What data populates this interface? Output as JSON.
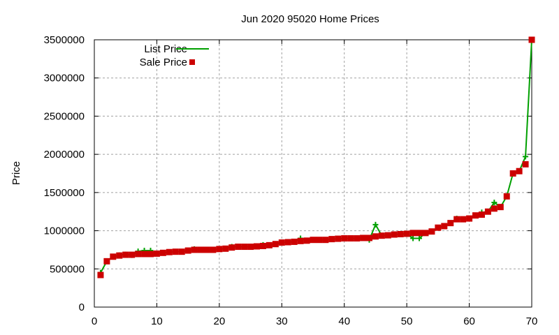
{
  "chart_data": {
    "type": "line",
    "title": "Jun 2020 95020 Home Prices",
    "xlabel": "",
    "ylabel": "Price",
    "xlim": [
      0,
      70
    ],
    "ylim": [
      0,
      3500000
    ],
    "xticks": [
      0,
      10,
      20,
      30,
      40,
      50,
      60,
      70
    ],
    "yticks": [
      0,
      500000,
      1000000,
      1500000,
      2000000,
      2500000,
      3000000,
      3500000
    ],
    "grid": true,
    "legend_position": "top-left",
    "x": [
      1,
      2,
      3,
      4,
      5,
      6,
      7,
      8,
      9,
      10,
      11,
      12,
      13,
      14,
      15,
      16,
      17,
      18,
      19,
      20,
      21,
      22,
      23,
      24,
      25,
      26,
      27,
      28,
      29,
      30,
      31,
      32,
      33,
      34,
      35,
      36,
      37,
      38,
      39,
      40,
      41,
      42,
      43,
      44,
      45,
      46,
      47,
      48,
      49,
      50,
      51,
      52,
      53,
      54,
      55,
      56,
      57,
      58,
      59,
      60,
      61,
      62,
      63,
      64,
      65,
      66,
      67,
      68,
      69,
      70
    ],
    "series": [
      {
        "name": "List Price",
        "style": "linespoints",
        "marker": "plus",
        "color": "#00a000",
        "values": [
          450000,
          600000,
          660000,
          680000,
          690000,
          680000,
          730000,
          740000,
          740000,
          700000,
          710000,
          720000,
          725000,
          725000,
          740000,
          760000,
          750000,
          750000,
          750000,
          760000,
          765000,
          790000,
          790000,
          790000,
          790000,
          795000,
          815000,
          810000,
          825000,
          845000,
          850000,
          855000,
          900000,
          870000,
          880000,
          880000,
          880000,
          890000,
          895000,
          900000,
          900000,
          900000,
          905000,
          880000,
          1080000,
          935000,
          940000,
          950000,
          955000,
          960000,
          900000,
          900000,
          970000,
          990000,
          1040000,
          1060000,
          1100000,
          1160000,
          1150000,
          1160000,
          1200000,
          1240000,
          1250000,
          1370000,
          1310000,
          1450000,
          1750000,
          1780000,
          1970000,
          3500000
        ]
      },
      {
        "name": "Sale Price",
        "style": "points",
        "marker": "square",
        "color": "#cc0000",
        "values": [
          420000,
          600000,
          660000,
          675000,
          685000,
          685000,
          695000,
          695000,
          695000,
          700000,
          710000,
          720000,
          725000,
          725000,
          740000,
          750000,
          750000,
          750000,
          750000,
          760000,
          765000,
          780000,
          790000,
          790000,
          790000,
          795000,
          800000,
          810000,
          825000,
          845000,
          850000,
          855000,
          865000,
          870000,
          880000,
          880000,
          880000,
          890000,
          895000,
          900000,
          900000,
          900000,
          905000,
          905000,
          925000,
          935000,
          940000,
          950000,
          955000,
          960000,
          970000,
          970000,
          970000,
          990000,
          1040000,
          1060000,
          1100000,
          1150000,
          1150000,
          1160000,
          1200000,
          1210000,
          1250000,
          1290000,
          1310000,
          1450000,
          1750000,
          1780000,
          1870000,
          3500000
        ]
      }
    ]
  }
}
